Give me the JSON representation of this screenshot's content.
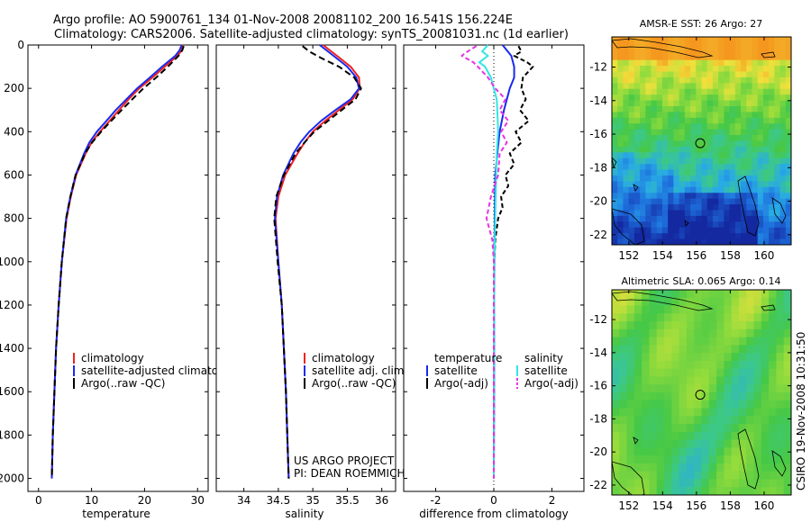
{
  "header": {
    "line1": "Argo profile: AO 5900761_134 01-Nov-2008 20081102_200 16.541S 156.224E",
    "line2": "Climatology: CARS2006. Satellite-adjusted climatology: synTS_20081031.nc (1d earlier)"
  },
  "side_text": "CSIRO 19-Nov-2008 10:31:50",
  "project_text": {
    "line1": "US ARGO PROJECT",
    "line2": "PI: DEAN ROEMMICH"
  },
  "colors": {
    "climatology": "#ee2222",
    "satellite": "#1a2aee",
    "argo": "#000000",
    "sat_salinity": "#33e6e6",
    "argo_salinity_adj": "#e633e6"
  },
  "chart_data": [
    {
      "type": "line",
      "xlabel": "temperature",
      "ylim": [
        2060,
        0
      ],
      "xlim": [
        -2,
        32
      ],
      "xticks": [
        "0",
        "10",
        "20",
        "30"
      ],
      "yticks": [
        "0",
        "200",
        "400",
        "600",
        "800",
        "1000",
        "1200",
        "1400",
        "1600",
        "1800",
        "2000"
      ],
      "legend": [
        "climatology",
        "satellite-adjusted climatology",
        "Argo(..raw -QC)"
      ],
      "series": [
        {
          "name": "climatology",
          "depth": [
            0,
            25,
            50,
            100,
            150,
            200,
            250,
            300,
            350,
            400,
            450,
            500,
            600,
            700,
            800,
            1000,
            1200,
            1400,
            1600,
            1800,
            2000
          ],
          "values": [
            27.2,
            27.0,
            26.2,
            23.8,
            21.5,
            19.0,
            17.0,
            15.2,
            13.4,
            11.6,
            10.0,
            8.9,
            7.1,
            6.1,
            5.3,
            4.4,
            3.8,
            3.3,
            3.0,
            2.7,
            2.5
          ]
        },
        {
          "name": "satellite-adjusted climatology",
          "depth": [
            0,
            25,
            50,
            100,
            150,
            200,
            250,
            300,
            350,
            400,
            450,
            500,
            600,
            700,
            800,
            1000,
            1200,
            1400,
            1600,
            1800,
            2000
          ],
          "values": [
            27.0,
            26.6,
            25.8,
            23.3,
            21.0,
            18.6,
            16.6,
            14.6,
            12.8,
            11.0,
            9.6,
            8.6,
            7.0,
            6.0,
            5.2,
            4.4,
            3.8,
            3.3,
            3.0,
            2.7,
            2.5
          ]
        },
        {
          "name": "Argo(..raw -QC)",
          "depth": [
            5,
            25,
            50,
            100,
            150,
            200,
            250,
            300,
            350,
            400,
            450,
            500,
            600,
            700,
            800,
            1000,
            1200,
            1400,
            1600,
            1800,
            2000
          ],
          "values": [
            27.4,
            27.1,
            26.4,
            24.4,
            22.2,
            19.8,
            17.7,
            15.7,
            13.7,
            11.8,
            10.1,
            8.8,
            7.0,
            6.0,
            5.2,
            4.4,
            3.8,
            3.3,
            3.0,
            2.7,
            2.5
          ]
        }
      ]
    },
    {
      "type": "line",
      "xlabel": "salinity",
      "ylim": [
        2060,
        0
      ],
      "xlim": [
        33.6,
        36.2
      ],
      "xticks": [
        "34",
        "34.5",
        "35",
        "35.5",
        "36"
      ],
      "legend": [
        "climatology",
        "satellite adj. clim.",
        "Argo(..raw -QC)"
      ],
      "series": [
        {
          "name": "climatology",
          "depth": [
            0,
            50,
            100,
            150,
            200,
            250,
            300,
            350,
            400,
            450,
            500,
            600,
            700,
            800,
            1000,
            1200,
            1400,
            1600,
            1800,
            2000
          ],
          "values": [
            35.15,
            35.35,
            35.55,
            35.67,
            35.68,
            35.58,
            35.38,
            35.18,
            35.0,
            34.88,
            34.78,
            34.6,
            34.5,
            34.46,
            34.5,
            34.55,
            34.58,
            34.61,
            34.63,
            34.65
          ]
        },
        {
          "name": "satellite adj. clim.",
          "depth": [
            0,
            50,
            100,
            150,
            200,
            250,
            300,
            350,
            400,
            450,
            500,
            600,
            700,
            800,
            1000,
            1200,
            1400,
            1600,
            1800,
            2000
          ],
          "values": [
            35.1,
            35.3,
            35.5,
            35.63,
            35.67,
            35.55,
            35.33,
            35.12,
            34.95,
            34.82,
            34.72,
            34.57,
            34.48,
            34.45,
            34.5,
            34.55,
            34.58,
            34.61,
            34.63,
            34.65
          ]
        },
        {
          "name": "Argo(..raw -QC)",
          "depth": [
            5,
            30,
            60,
            100,
            150,
            200,
            250,
            300,
            350,
            400,
            450,
            500,
            600,
            700,
            800,
            1000,
            1200,
            1400,
            1600,
            1800,
            2000
          ],
          "values": [
            34.85,
            34.95,
            35.12,
            35.38,
            35.6,
            35.7,
            35.62,
            35.42,
            35.22,
            35.02,
            34.88,
            34.75,
            34.58,
            34.47,
            34.44,
            34.49,
            34.55,
            34.58,
            34.61,
            34.63,
            34.65
          ]
        }
      ]
    },
    {
      "type": "line",
      "xlabel": "difference from climatology",
      "ylim": [
        2060,
        0
      ],
      "xlim": [
        -3.1,
        3.1
      ],
      "xticks": [
        "-2",
        "0",
        "2"
      ],
      "legend_title_left": "temperature",
      "legend_title_right": "salinity",
      "legend": [
        "satellite",
        "Argo(-adj)",
        "satellite",
        "Argo(-adj)"
      ],
      "series": [
        {
          "name": "temperature satellite",
          "depth": [
            0,
            50,
            100,
            150,
            200,
            300,
            400,
            500,
            600,
            800,
            1000,
            1500,
            2000
          ],
          "values": [
            0.3,
            0.6,
            0.7,
            0.7,
            0.55,
            0.35,
            0.2,
            0.12,
            0.05,
            0.03,
            0.02,
            0.01,
            0.0
          ]
        },
        {
          "name": "temperature Argo(-adj)",
          "depth": [
            5,
            30,
            50,
            80,
            100,
            150,
            200,
            250,
            300,
            350,
            400,
            450,
            500,
            550,
            600,
            650,
            700,
            750,
            800,
            900,
            1000,
            1500,
            2000
          ],
          "values": [
            0.85,
            0.95,
            0.7,
            1.15,
            1.35,
            1.0,
            0.95,
            1.1,
            0.9,
            1.2,
            0.75,
            0.95,
            0.55,
            0.7,
            0.4,
            0.5,
            0.25,
            0.3,
            0.15,
            0.05,
            0.02,
            0.01,
            0.0
          ]
        },
        {
          "name": "salinity satellite",
          "depth": [
            0,
            30,
            50,
            80,
            100,
            150,
            200,
            250,
            300,
            400,
            500,
            600,
            800,
            1000,
            1500,
            2000
          ],
          "values": [
            -0.2,
            -0.4,
            -0.2,
            -0.5,
            -0.3,
            -0.1,
            0.0,
            0.1,
            0.12,
            0.15,
            0.1,
            0.08,
            0.05,
            0.02,
            0.01,
            0.0
          ]
        },
        {
          "name": "salinity Argo(-adj)",
          "depth": [
            5,
            30,
            50,
            80,
            100,
            150,
            200,
            250,
            300,
            350,
            400,
            450,
            500,
            600,
            700,
            800,
            900,
            1000,
            1500,
            2000
          ],
          "values": [
            -0.6,
            -0.9,
            -1.1,
            -0.7,
            -0.55,
            -0.2,
            0.05,
            0.4,
            0.2,
            0.5,
            0.25,
            0.45,
            0.2,
            0.15,
            -0.1,
            -0.25,
            -0.05,
            0.0,
            0.0,
            0.0
          ]
        }
      ]
    },
    {
      "type": "heatmap",
      "title": "AMSR-E SST: 26 Argo: 27",
      "xticks": [
        "152",
        "154",
        "156",
        "158",
        "160"
      ],
      "yticks": [
        "-12",
        "-14",
        "-16",
        "-18",
        "-20",
        "-22"
      ],
      "xlim": [
        151,
        161.6
      ],
      "ylim": [
        -22.6,
        -10.2
      ],
      "marker": {
        "lon": 156.224,
        "lat": -16.541
      }
    },
    {
      "type": "heatmap",
      "title": "Altimetric SLA: 0.065 Argo: 0.14",
      "xticks": [
        "152",
        "154",
        "156",
        "158",
        "160"
      ],
      "yticks": [
        "-12",
        "-14",
        "-16",
        "-18",
        "-20",
        "-22"
      ],
      "xlim": [
        151,
        161.6
      ],
      "ylim": [
        -22.6,
        -10.2
      ],
      "marker": {
        "lon": 156.224,
        "lat": -16.541
      }
    }
  ]
}
